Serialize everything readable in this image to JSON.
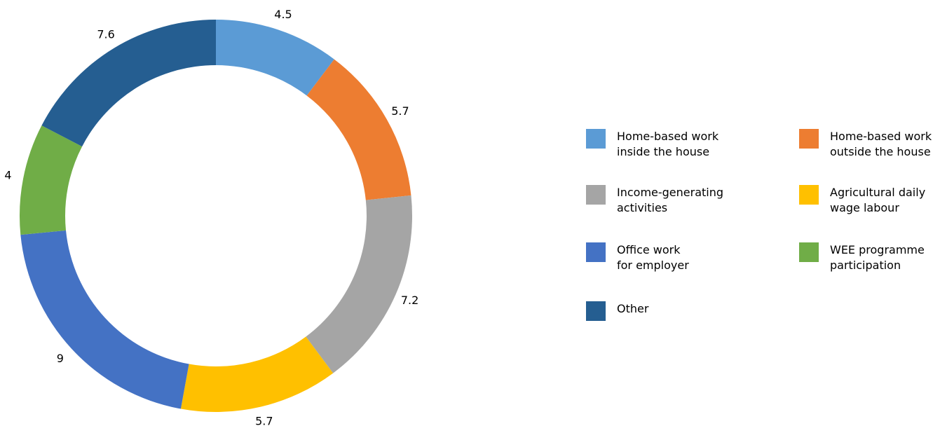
{
  "chart_data": {
    "type": "donut",
    "categories": [
      "Home-based work\ninside the house",
      "Home-based work\noutside the house",
      "Income-generating\nactivities",
      "Agricultural daily\nwage labour",
      "Office work\nfor employer",
      "WEE programme\nparticipation",
      "Other"
    ],
    "values": [
      4.5,
      5.7,
      7.2,
      5.7,
      9,
      4,
      7.6
    ],
    "colors": [
      "#5b9bd5",
      "#ed7d31",
      "#a5a5a5",
      "#ffc000",
      "#4472c4",
      "#70ad47",
      "#255e91"
    ],
    "legend": "right"
  }
}
